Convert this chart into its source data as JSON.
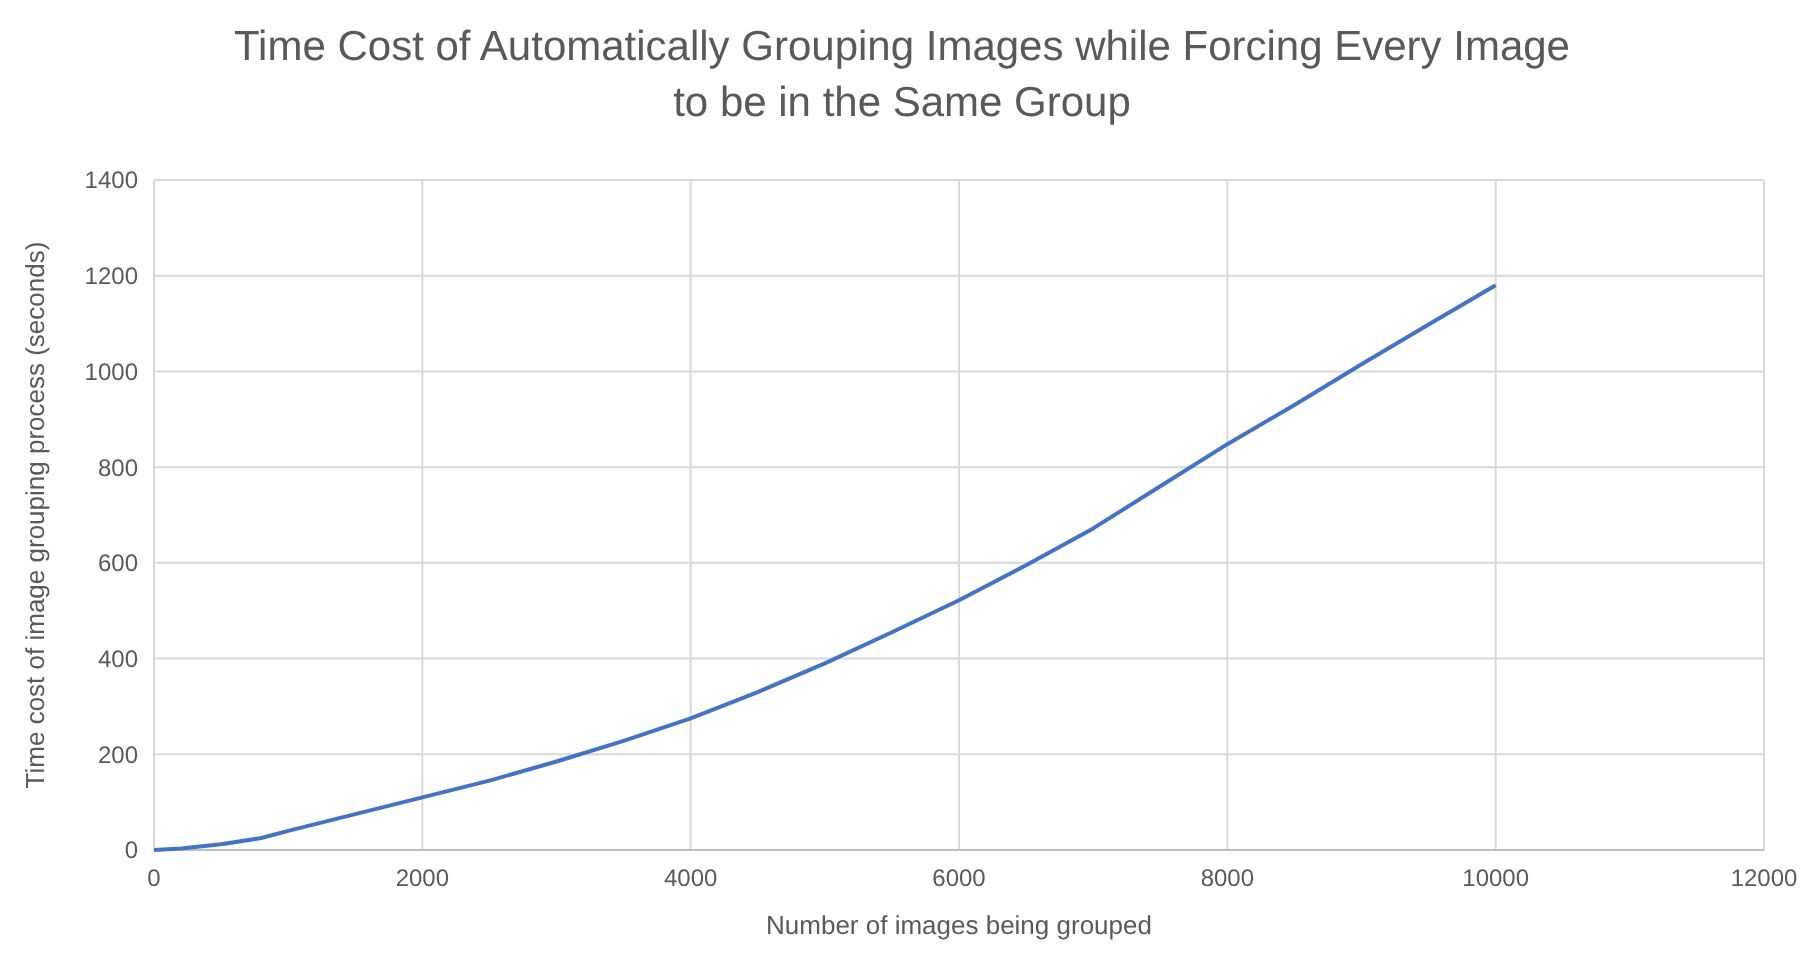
{
  "chart_data": {
    "type": "line",
    "title": "Time Cost of Automatically Grouping Images while Forcing Every Image to be in the Same Group",
    "xlabel": "Number of images being grouped",
    "ylabel": "Time cost of image grouping process (seconds)",
    "x": [
      0,
      200,
      500,
      800,
      1000,
      1500,
      2000,
      2500,
      3000,
      3500,
      4000,
      4500,
      5000,
      5500,
      6000,
      6500,
      7000,
      7500,
      8000,
      8500,
      9000,
      9500,
      10000
    ],
    "series": [
      {
        "color": "#4472c4",
        "values": [
          0,
          3,
          12,
          25,
          40,
          75,
          110,
          145,
          185,
          228,
          275,
          330,
          390,
          455,
          522,
          595,
          672,
          760,
          848,
          930,
          1015,
          1098,
          1180
        ]
      }
    ],
    "xlim": [
      0,
      12000
    ],
    "xticks": [
      0,
      2000,
      4000,
      6000,
      8000,
      10000,
      12000
    ],
    "ylim": [
      0,
      1400
    ],
    "yticks": [
      0,
      200,
      400,
      600,
      800,
      1000,
      1200,
      1400
    ],
    "grid": true,
    "marker": "none",
    "line_style": "solid"
  }
}
